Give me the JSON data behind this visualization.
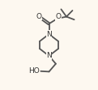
{
  "bg_color": "#fdf8f0",
  "line_color": "#555555",
  "text_color": "#333333",
  "line_width": 1.3,
  "font_size": 6.5,
  "figsize": [
    1.21,
    1.11
  ],
  "dpi": 100,
  "xlim": [
    0,
    10
  ],
  "ylim": [
    0,
    9
  ]
}
